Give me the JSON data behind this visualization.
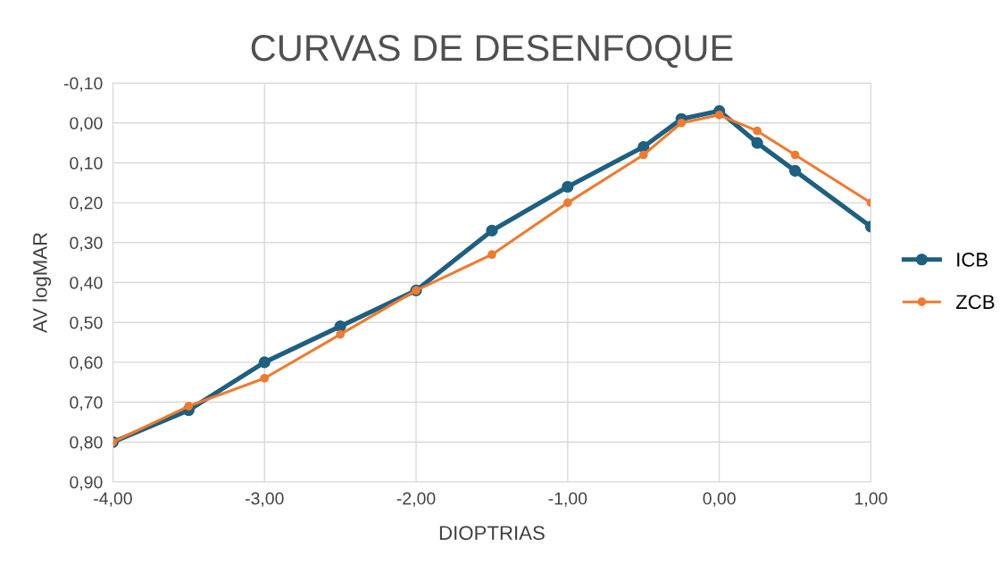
{
  "chart_data": {
    "type": "line",
    "title": "CURVAS DE DESENFOQUE",
    "xlabel": "DIOPTRIAS",
    "ylabel": "AV logMAR",
    "x": [
      -4,
      -3.5,
      -3,
      -2.5,
      -2,
      -1.5,
      -1,
      -0.5,
      -0.25,
      0,
      0.25,
      0.5,
      1
    ],
    "series": [
      {
        "name": "ICB",
        "color": "#1f5f80",
        "values": [
          0.8,
          0.72,
          0.6,
          0.51,
          0.42,
          0.27,
          0.16,
          0.06,
          -0.01,
          -0.03,
          0.05,
          0.12,
          0.26
        ]
      },
      {
        "name": "ZCB",
        "color": "#ee7b30",
        "values": [
          0.8,
          0.71,
          0.64,
          0.53,
          0.42,
          0.33,
          0.2,
          0.08,
          0.0,
          -0.02,
          0.02,
          0.08,
          0.2
        ]
      }
    ],
    "xlim": [
      -4,
      1
    ],
    "ylim": [
      0.9,
      -0.1
    ],
    "xticks": [
      {
        "value": -4,
        "label": "-4,00"
      },
      {
        "value": -3,
        "label": "-3,00"
      },
      {
        "value": -2,
        "label": "-2,00"
      },
      {
        "value": -1,
        "label": "-1,00"
      },
      {
        "value": 0,
        "label": "0,00"
      },
      {
        "value": 1,
        "label": "1,00"
      }
    ],
    "yticks": [
      {
        "value": -0.1,
        "label": "-0,10"
      },
      {
        "value": 0,
        "label": "0,00"
      },
      {
        "value": 0.1,
        "label": "0,10"
      },
      {
        "value": 0.2,
        "label": "0,20"
      },
      {
        "value": 0.3,
        "label": "0,30"
      },
      {
        "value": 0.4,
        "label": "0,40"
      },
      {
        "value": 0.5,
        "label": "0,50"
      },
      {
        "value": 0.6,
        "label": "0,60"
      },
      {
        "value": 0.7,
        "label": "0,70"
      },
      {
        "value": 0.8,
        "label": "0,80"
      },
      {
        "value": 0.9,
        "label": "0,90"
      }
    ],
    "grid": true,
    "legend": "right",
    "marker": "circle",
    "line_style": "solid"
  }
}
